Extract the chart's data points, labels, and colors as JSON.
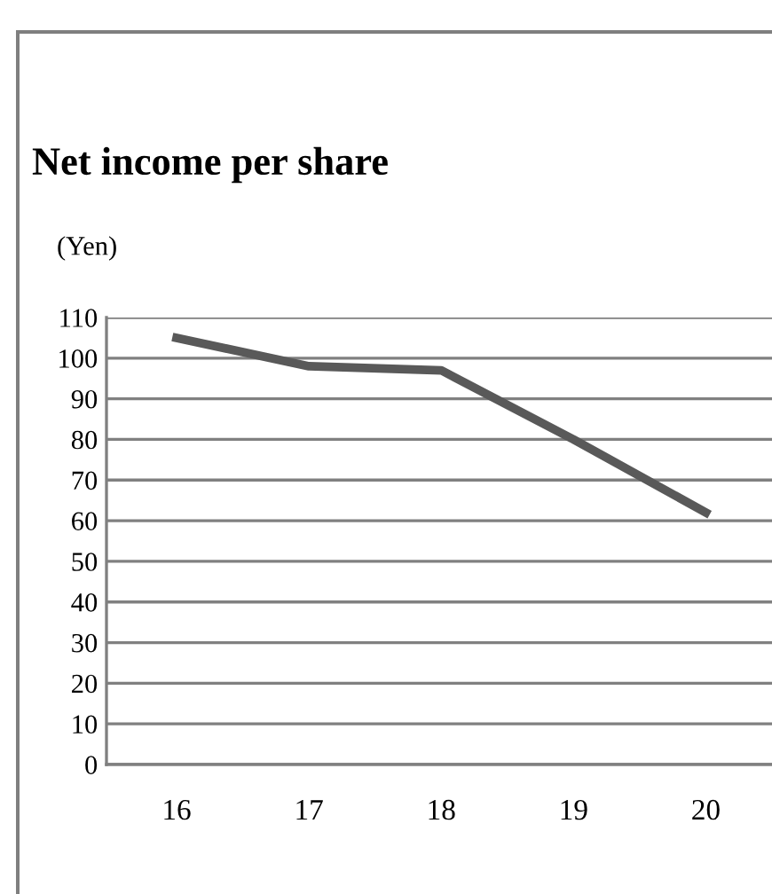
{
  "chart_data": {
    "type": "line",
    "title": "Net income per share",
    "ylabel": "(Yen)",
    "categories": [
      "16",
      "17",
      "18",
      "19",
      "20"
    ],
    "series": [
      {
        "color": "#595959",
        "values": [
          105,
          98,
          97,
          80,
          62
        ]
      }
    ],
    "ylim": [
      0,
      110
    ],
    "yticks": [
      0,
      10,
      20,
      30,
      40,
      50,
      60,
      70,
      80,
      90,
      100,
      110
    ],
    "grid": "y",
    "legend": false,
    "marker": "none",
    "line_style": "solid"
  }
}
